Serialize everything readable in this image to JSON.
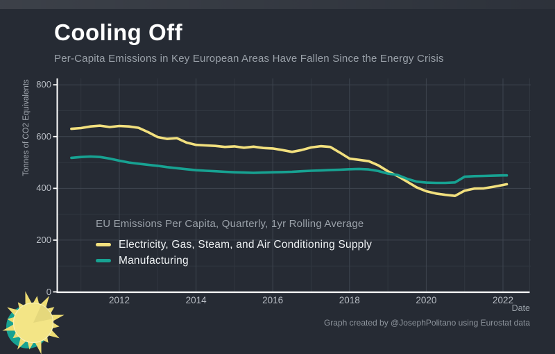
{
  "header": {
    "title": "Cooling Off",
    "subtitle": "Per-Capita Emissions in Key European Areas Have Fallen Since the Energy Crisis"
  },
  "footer": {
    "caption": "Graph created by @JosephPolitano using Eurostat data"
  },
  "colors": {
    "background": "#262b34",
    "axis": "#ffffff",
    "grid_major": "#3f4650",
    "grid_minor": "#313740",
    "tick_label": "#b9bec5",
    "muted_text": "#9aa1a9",
    "electricity_line": "#f2e07e",
    "manufacturing_line": "#17a292",
    "sun_body": "#f3e586",
    "sun_rays": "#eedd74",
    "sun_back_circle": "#17a292"
  },
  "chart_data": {
    "type": "line",
    "title": "Cooling Off",
    "subtitle": "Per-Capita Emissions in Key European Areas Have Fallen Since the Energy Crisis",
    "xlabel": "Date",
    "ylabel": "Tonnes of CO2 Equivalents",
    "legend_title": "EU Emissions Per Capita, Quarterly, 1yr Rolling Average",
    "legend_position": "inside-bottom-left",
    "grid": true,
    "xlim": [
      2010.4,
      2022.7
    ],
    "ylim": [
      0,
      800
    ],
    "x_ticks": [
      2012,
      2014,
      2016,
      2018,
      2020,
      2022
    ],
    "x_minor_ticks": [
      2011,
      2013,
      2015,
      2017,
      2019,
      2021
    ],
    "y_ticks": [
      0,
      200,
      400,
      600,
      800
    ],
    "y_minor_ticks": [
      100,
      300,
      500,
      700
    ],
    "x": [
      2010.75,
      2011,
      2011.25,
      2011.5,
      2011.75,
      2012,
      2012.25,
      2012.5,
      2012.75,
      2013,
      2013.25,
      2013.5,
      2013.75,
      2014,
      2014.25,
      2014.5,
      2014.75,
      2015,
      2015.25,
      2015.5,
      2015.75,
      2016,
      2016.25,
      2016.5,
      2016.75,
      2017,
      2017.25,
      2017.5,
      2017.75,
      2018,
      2018.25,
      2018.5,
      2018.75,
      2019,
      2019.25,
      2019.5,
      2019.75,
      2020,
      2020.25,
      2020.5,
      2020.75,
      2021,
      2021.25,
      2021.5,
      2021.75,
      2022,
      2022.1
    ],
    "series": [
      {
        "name": "Electricity, Gas, Steam, and Air Conditioning Supply",
        "color": "#f2e07e",
        "values": [
          630,
          633,
          639,
          642,
          637,
          641,
          639,
          634,
          617,
          598,
          591,
          594,
          577,
          568,
          566,
          564,
          560,
          562,
          557,
          561,
          556,
          554,
          548,
          541,
          548,
          558,
          563,
          560,
          538,
          515,
          510,
          505,
          489,
          466,
          448,
          426,
          404,
          389,
          380,
          375,
          371,
          391,
          399,
          400,
          406,
          413,
          416
        ]
      },
      {
        "name": "Manufacturing",
        "color": "#17a292",
        "values": [
          518,
          521,
          523,
          521,
          515,
          507,
          500,
          495,
          491,
          487,
          482,
          478,
          474,
          470,
          468,
          466,
          464,
          462,
          461,
          460,
          461,
          462,
          463,
          464,
          466,
          468,
          469,
          471,
          472,
          474,
          475,
          473,
          467,
          457,
          452,
          437,
          426,
          422,
          421,
          421,
          423,
          445,
          447,
          448,
          449,
          450,
          450
        ]
      }
    ],
    "caption": "Graph created by @JosephPolitano using Eurostat data"
  }
}
